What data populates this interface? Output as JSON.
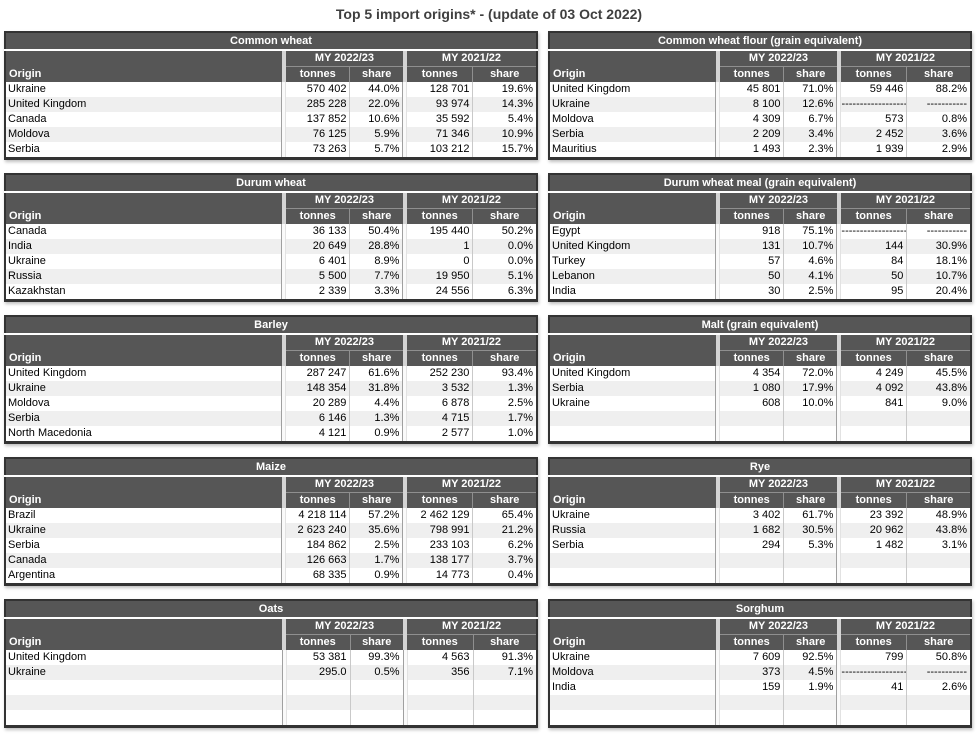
{
  "title": "Top 5 import origins* - (update of 03 Oct 2022)",
  "headers": {
    "origin": "Origin",
    "period_2022_23": "MY 2022/23",
    "period_2021_22": "MY 2021/22",
    "tonnes": "tonnes",
    "share": "share"
  },
  "no_data_fill": {
    "tonnes": "------------------",
    "share": "-----------"
  },
  "colors": {
    "header_bg": "#565656",
    "header_text": "#ffffff",
    "table_border": "#333333",
    "alt_row_bg": "#efefef",
    "title_text": "#3f3f3f"
  },
  "left_tables": [
    {
      "title": "Common wheat",
      "rows": [
        {
          "origin": "Ukraine",
          "tonnes_2022_23": "570 402",
          "share_2022_23": "44.0%",
          "tonnes_2021_22": "128 701",
          "share_2021_22": "19.6%"
        },
        {
          "origin": "United Kingdom",
          "tonnes_2022_23": "285 228",
          "share_2022_23": "22.0%",
          "tonnes_2021_22": "93 974",
          "share_2021_22": "14.3%"
        },
        {
          "origin": "Canada",
          "tonnes_2022_23": "137 852",
          "share_2022_23": "10.6%",
          "tonnes_2021_22": "35 592",
          "share_2021_22": "5.4%"
        },
        {
          "origin": "Moldova",
          "tonnes_2022_23": "76 125",
          "share_2022_23": "5.9%",
          "tonnes_2021_22": "71 346",
          "share_2021_22": "10.9%"
        },
        {
          "origin": "Serbia",
          "tonnes_2022_23": "73 263",
          "share_2022_23": "5.7%",
          "tonnes_2021_22": "103 212",
          "share_2021_22": "15.7%"
        }
      ]
    },
    {
      "title": "Durum wheat",
      "rows": [
        {
          "origin": "Canada",
          "tonnes_2022_23": "36 133",
          "share_2022_23": "50.4%",
          "tonnes_2021_22": "195 440",
          "share_2021_22": "50.2%"
        },
        {
          "origin": "India",
          "tonnes_2022_23": "20 649",
          "share_2022_23": "28.8%",
          "tonnes_2021_22": "1",
          "share_2021_22": "0.0%"
        },
        {
          "origin": "Ukraine",
          "tonnes_2022_23": "6 401",
          "share_2022_23": "8.9%",
          "tonnes_2021_22": "0",
          "share_2021_22": "0.0%"
        },
        {
          "origin": "Russia",
          "tonnes_2022_23": "5 500",
          "share_2022_23": "7.7%",
          "tonnes_2021_22": "19 950",
          "share_2021_22": "5.1%"
        },
        {
          "origin": "Kazakhstan",
          "tonnes_2022_23": "2 339",
          "share_2022_23": "3.3%",
          "tonnes_2021_22": "24 556",
          "share_2021_22": "6.3%"
        }
      ]
    },
    {
      "title": "Barley",
      "rows": [
        {
          "origin": "United Kingdom",
          "tonnes_2022_23": "287 247",
          "share_2022_23": "61.6%",
          "tonnes_2021_22": "252 230",
          "share_2021_22": "93.4%"
        },
        {
          "origin": "Ukraine",
          "tonnes_2022_23": "148 354",
          "share_2022_23": "31.8%",
          "tonnes_2021_22": "3 532",
          "share_2021_22": "1.3%"
        },
        {
          "origin": "Moldova",
          "tonnes_2022_23": "20 289",
          "share_2022_23": "4.4%",
          "tonnes_2021_22": "6 878",
          "share_2021_22": "2.5%"
        },
        {
          "origin": "Serbia",
          "tonnes_2022_23": "6 146",
          "share_2022_23": "1.3%",
          "tonnes_2021_22": "4 715",
          "share_2021_22": "1.7%"
        },
        {
          "origin": "North Macedonia",
          "tonnes_2022_23": "4 121",
          "share_2022_23": "0.9%",
          "tonnes_2021_22": "2 577",
          "share_2021_22": "1.0%"
        }
      ]
    },
    {
      "title": "Maize",
      "rows": [
        {
          "origin": "Brazil",
          "tonnes_2022_23": "4 218 114",
          "share_2022_23": "57.2%",
          "tonnes_2021_22": "2 462 129",
          "share_2021_22": "65.4%"
        },
        {
          "origin": "Ukraine",
          "tonnes_2022_23": "2 623 240",
          "share_2022_23": "35.6%",
          "tonnes_2021_22": "798 991",
          "share_2021_22": "21.2%"
        },
        {
          "origin": "Serbia",
          "tonnes_2022_23": "184 862",
          "share_2022_23": "2.5%",
          "tonnes_2021_22": "233 103",
          "share_2021_22": "6.2%"
        },
        {
          "origin": "Canada",
          "tonnes_2022_23": "126 663",
          "share_2022_23": "1.7%",
          "tonnes_2021_22": "138 177",
          "share_2021_22": "3.7%"
        },
        {
          "origin": "Argentina",
          "tonnes_2022_23": "68 335",
          "share_2022_23": "0.9%",
          "tonnes_2021_22": "14 773",
          "share_2021_22": "0.4%"
        }
      ]
    },
    {
      "title": "Oats",
      "rows": [
        {
          "origin": "United Kingdom",
          "tonnes_2022_23": "53 381",
          "share_2022_23": "99.3%",
          "tonnes_2021_22": "4 563",
          "share_2021_22": "91.3%"
        },
        {
          "origin": "Ukraine",
          "tonnes_2022_23": "295.0",
          "share_2022_23": "0.5%",
          "tonnes_2021_22": "356",
          "share_2021_22": "7.1%"
        },
        {
          "origin": "",
          "tonnes_2022_23": "",
          "share_2022_23": "",
          "tonnes_2021_22": "",
          "share_2021_22": ""
        },
        {
          "origin": "",
          "tonnes_2022_23": "",
          "share_2022_23": "",
          "tonnes_2021_22": "",
          "share_2021_22": ""
        },
        {
          "origin": "",
          "tonnes_2022_23": "",
          "share_2022_23": "",
          "tonnes_2021_22": "",
          "share_2021_22": ""
        }
      ]
    }
  ],
  "right_tables": [
    {
      "title": "Common wheat flour (grain equivalent)",
      "rows": [
        {
          "origin": "United Kingdom",
          "tonnes_2022_23": "45 801",
          "share_2022_23": "71.0%",
          "tonnes_2021_22": "59 446",
          "share_2021_22": "88.2%"
        },
        {
          "origin": "Ukraine",
          "tonnes_2022_23": "8 100",
          "share_2022_23": "12.6%",
          "tonnes_2021_22": "------------------",
          "share_2021_22": "-----------"
        },
        {
          "origin": "Moldova",
          "tonnes_2022_23": "4 309",
          "share_2022_23": "6.7%",
          "tonnes_2021_22": "573",
          "share_2021_22": "0.8%"
        },
        {
          "origin": "Serbia",
          "tonnes_2022_23": "2 209",
          "share_2022_23": "3.4%",
          "tonnes_2021_22": "2 452",
          "share_2021_22": "3.6%"
        },
        {
          "origin": "Mauritius",
          "tonnes_2022_23": "1 493",
          "share_2022_23": "2.3%",
          "tonnes_2021_22": "1 939",
          "share_2021_22": "2.9%"
        }
      ]
    },
    {
      "title": "Durum wheat meal (grain equivalent)",
      "rows": [
        {
          "origin": "Egypt",
          "tonnes_2022_23": "918",
          "share_2022_23": "75.1%",
          "tonnes_2021_22": "------------------",
          "share_2021_22": "-----------"
        },
        {
          "origin": "United Kingdom",
          "tonnes_2022_23": "131",
          "share_2022_23": "10.7%",
          "tonnes_2021_22": "144",
          "share_2021_22": "30.9%"
        },
        {
          "origin": "Turkey",
          "tonnes_2022_23": "57",
          "share_2022_23": "4.6%",
          "tonnes_2021_22": "84",
          "share_2021_22": "18.1%"
        },
        {
          "origin": "Lebanon",
          "tonnes_2022_23": "50",
          "share_2022_23": "4.1%",
          "tonnes_2021_22": "50",
          "share_2021_22": "10.7%"
        },
        {
          "origin": "India",
          "tonnes_2022_23": "30",
          "share_2022_23": "2.5%",
          "tonnes_2021_22": "95",
          "share_2021_22": "20.4%"
        }
      ]
    },
    {
      "title": "Malt (grain equivalent)",
      "rows": [
        {
          "origin": "United Kingdom",
          "tonnes_2022_23": "4 354",
          "share_2022_23": "72.0%",
          "tonnes_2021_22": "4 249",
          "share_2021_22": "45.5%"
        },
        {
          "origin": "Serbia",
          "tonnes_2022_23": "1 080",
          "share_2022_23": "17.9%",
          "tonnes_2021_22": "4 092",
          "share_2021_22": "43.8%"
        },
        {
          "origin": "Ukraine",
          "tonnes_2022_23": "608",
          "share_2022_23": "10.0%",
          "tonnes_2021_22": "841",
          "share_2021_22": "9.0%"
        },
        {
          "origin": "",
          "tonnes_2022_23": "",
          "share_2022_23": "",
          "tonnes_2021_22": "",
          "share_2021_22": ""
        },
        {
          "origin": "",
          "tonnes_2022_23": "",
          "share_2022_23": "",
          "tonnes_2021_22": "",
          "share_2021_22": ""
        }
      ]
    },
    {
      "title": "Rye",
      "rows": [
        {
          "origin": "Ukraine",
          "tonnes_2022_23": "3 402",
          "share_2022_23": "61.7%",
          "tonnes_2021_22": "23 392",
          "share_2021_22": "48.9%"
        },
        {
          "origin": "Russia",
          "tonnes_2022_23": "1 682",
          "share_2022_23": "30.5%",
          "tonnes_2021_22": "20 962",
          "share_2021_22": "43.8%"
        },
        {
          "origin": "Serbia",
          "tonnes_2022_23": "294",
          "share_2022_23": "5.3%",
          "tonnes_2021_22": "1 482",
          "share_2021_22": "3.1%"
        },
        {
          "origin": "",
          "tonnes_2022_23": "",
          "share_2022_23": "",
          "tonnes_2021_22": "",
          "share_2021_22": ""
        },
        {
          "origin": "",
          "tonnes_2022_23": "",
          "share_2022_23": "",
          "tonnes_2021_22": "",
          "share_2021_22": ""
        }
      ]
    },
    {
      "title": "Sorghum",
      "rows": [
        {
          "origin": "Ukraine",
          "tonnes_2022_23": "7 609",
          "share_2022_23": "92.5%",
          "tonnes_2021_22": "799",
          "share_2021_22": "50.8%"
        },
        {
          "origin": "Moldova",
          "tonnes_2022_23": "373",
          "share_2022_23": "4.5%",
          "tonnes_2021_22": "------------------",
          "share_2021_22": "-----------"
        },
        {
          "origin": "India",
          "tonnes_2022_23": "159",
          "share_2022_23": "1.9%",
          "tonnes_2021_22": "41",
          "share_2021_22": "2.6%"
        },
        {
          "origin": "",
          "tonnes_2022_23": "",
          "share_2022_23": "",
          "tonnes_2021_22": "",
          "share_2021_22": ""
        },
        {
          "origin": "",
          "tonnes_2022_23": "",
          "share_2022_23": "",
          "tonnes_2021_22": "",
          "share_2021_22": ""
        }
      ]
    }
  ]
}
